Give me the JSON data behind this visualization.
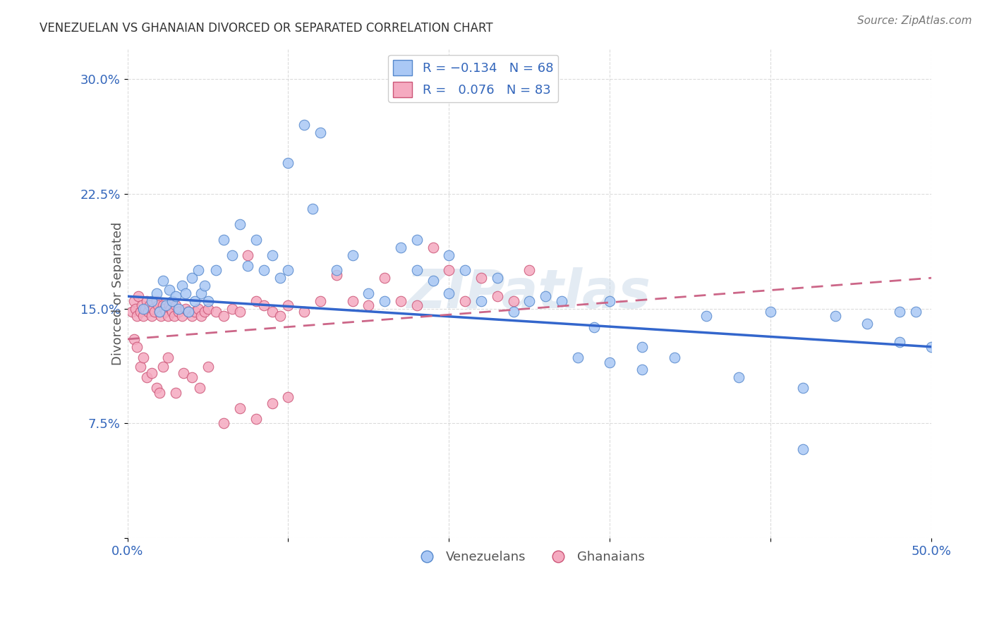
{
  "title": "VENEZUELAN VS GHANAIAN DIVORCED OR SEPARATED CORRELATION CHART",
  "source": "Source: ZipAtlas.com",
  "ylabel": "Divorced or Separated",
  "xlim": [
    0.0,
    0.5
  ],
  "ylim": [
    0.0,
    0.32
  ],
  "xtick_positions": [
    0.0,
    0.1,
    0.2,
    0.3,
    0.4,
    0.5
  ],
  "xtick_labels": [
    "0.0%",
    "",
    "",
    "",
    "",
    "50.0%"
  ],
  "ytick_positions": [
    0.0,
    0.075,
    0.15,
    0.225,
    0.3
  ],
  "ytick_labels": [
    "",
    "7.5%",
    "15.0%",
    "22.5%",
    "30.0%"
  ],
  "venezuelan_face_color": "#aac8f5",
  "venezuelan_edge_color": "#5588cc",
  "ghanaian_face_color": "#f5aac0",
  "ghanaian_edge_color": "#cc5577",
  "venezuelan_line_color": "#3366cc",
  "ghanaian_line_color": "#cc6688",
  "watermark": "ZIPatlas",
  "venezuelan_scatter_x": [
    0.01,
    0.015,
    0.018,
    0.02,
    0.022,
    0.024,
    0.026,
    0.028,
    0.03,
    0.032,
    0.034,
    0.036,
    0.038,
    0.04,
    0.042,
    0.044,
    0.046,
    0.048,
    0.05,
    0.055,
    0.06,
    0.065,
    0.07,
    0.075,
    0.08,
    0.085,
    0.09,
    0.095,
    0.1,
    0.11,
    0.12,
    0.13,
    0.14,
    0.15,
    0.16,
    0.17,
    0.18,
    0.19,
    0.2,
    0.21,
    0.22,
    0.23,
    0.24,
    0.25,
    0.26,
    0.27,
    0.28,
    0.29,
    0.3,
    0.32,
    0.34,
    0.36,
    0.38,
    0.4,
    0.42,
    0.44,
    0.46,
    0.48,
    0.1,
    0.115,
    0.18,
    0.2,
    0.3,
    0.32,
    0.42,
    0.48,
    0.49,
    0.5
  ],
  "venezuelan_scatter_y": [
    0.15,
    0.155,
    0.16,
    0.148,
    0.168,
    0.152,
    0.162,
    0.155,
    0.158,
    0.15,
    0.165,
    0.16,
    0.148,
    0.17,
    0.155,
    0.175,
    0.16,
    0.165,
    0.155,
    0.175,
    0.195,
    0.185,
    0.205,
    0.178,
    0.195,
    0.175,
    0.185,
    0.17,
    0.175,
    0.27,
    0.265,
    0.175,
    0.185,
    0.16,
    0.155,
    0.19,
    0.175,
    0.168,
    0.16,
    0.175,
    0.155,
    0.17,
    0.148,
    0.155,
    0.158,
    0.155,
    0.118,
    0.138,
    0.155,
    0.125,
    0.118,
    0.145,
    0.105,
    0.148,
    0.098,
    0.145,
    0.14,
    0.128,
    0.245,
    0.215,
    0.195,
    0.185,
    0.115,
    0.11,
    0.058,
    0.148,
    0.148,
    0.125
  ],
  "ghanaian_scatter_x": [
    0.003,
    0.004,
    0.005,
    0.006,
    0.007,
    0.008,
    0.009,
    0.01,
    0.011,
    0.012,
    0.013,
    0.014,
    0.015,
    0.016,
    0.017,
    0.018,
    0.019,
    0.02,
    0.021,
    0.022,
    0.023,
    0.024,
    0.025,
    0.026,
    0.027,
    0.028,
    0.029,
    0.03,
    0.032,
    0.034,
    0.036,
    0.038,
    0.04,
    0.042,
    0.044,
    0.046,
    0.048,
    0.05,
    0.055,
    0.06,
    0.065,
    0.07,
    0.075,
    0.08,
    0.085,
    0.09,
    0.095,
    0.1,
    0.11,
    0.12,
    0.13,
    0.14,
    0.15,
    0.16,
    0.17,
    0.18,
    0.19,
    0.2,
    0.21,
    0.22,
    0.23,
    0.24,
    0.25,
    0.004,
    0.006,
    0.008,
    0.01,
    0.012,
    0.015,
    0.018,
    0.02,
    0.022,
    0.025,
    0.03,
    0.035,
    0.04,
    0.045,
    0.05,
    0.06,
    0.07,
    0.08,
    0.09,
    0.1
  ],
  "ghanaian_scatter_y": [
    0.148,
    0.155,
    0.15,
    0.145,
    0.158,
    0.148,
    0.152,
    0.145,
    0.15,
    0.155,
    0.148,
    0.152,
    0.145,
    0.15,
    0.148,
    0.155,
    0.152,
    0.148,
    0.145,
    0.152,
    0.15,
    0.148,
    0.145,
    0.152,
    0.15,
    0.148,
    0.145,
    0.152,
    0.148,
    0.145,
    0.15,
    0.148,
    0.145,
    0.148,
    0.15,
    0.145,
    0.148,
    0.15,
    0.148,
    0.145,
    0.15,
    0.148,
    0.185,
    0.155,
    0.152,
    0.148,
    0.145,
    0.152,
    0.148,
    0.155,
    0.172,
    0.155,
    0.152,
    0.17,
    0.155,
    0.152,
    0.19,
    0.175,
    0.155,
    0.17,
    0.158,
    0.155,
    0.175,
    0.13,
    0.125,
    0.112,
    0.118,
    0.105,
    0.108,
    0.098,
    0.095,
    0.112,
    0.118,
    0.095,
    0.108,
    0.105,
    0.098,
    0.112,
    0.075,
    0.085,
    0.078,
    0.088,
    0.092
  ]
}
